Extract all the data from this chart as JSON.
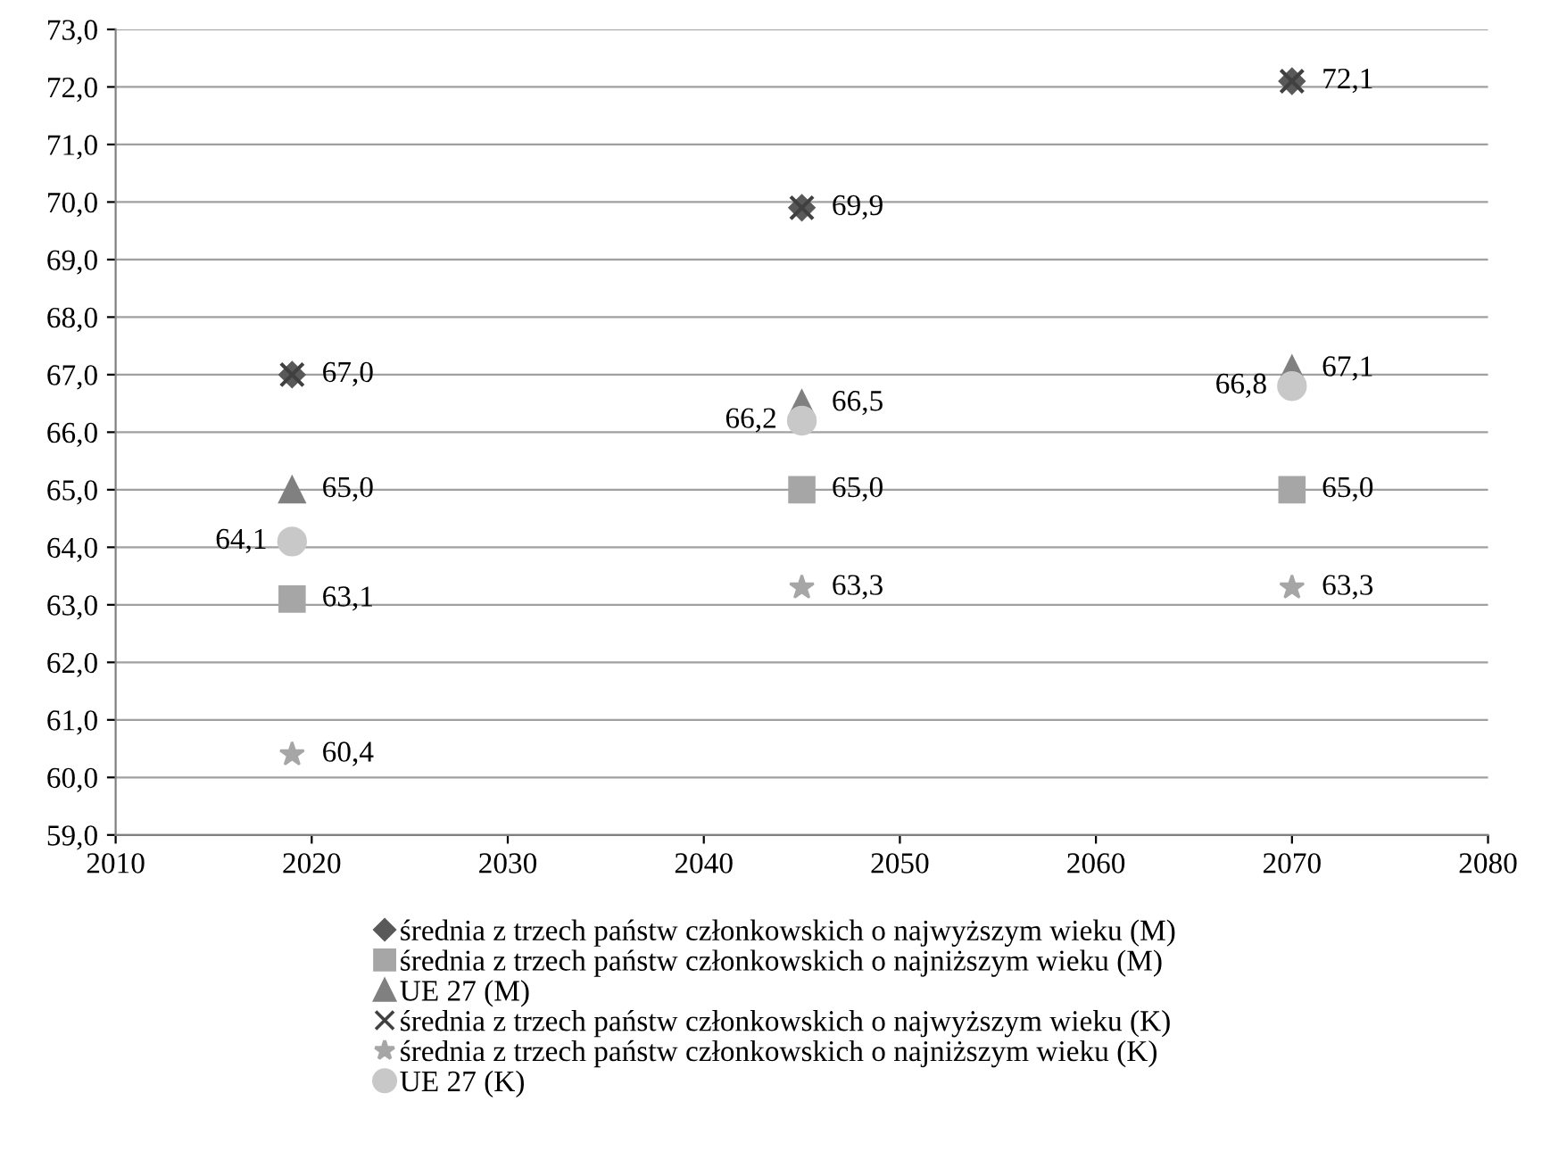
{
  "chart_data": {
    "type": "scatter",
    "x": [
      2019,
      2045,
      2070
    ],
    "series": [
      {
        "name": "średnia z trzech państw członkowskich o najwyższym wieku (M)",
        "color": "#595959",
        "marker": "diamond",
        "values": [
          67.0,
          69.9,
          72.1
        ],
        "value_labels": [
          "67,0",
          "69,9",
          "72,1"
        ]
      },
      {
        "name": "średnia z trzech państw członkowskich o najniższym wieku (M)",
        "color": "#a6a6a6",
        "marker": "square",
        "values": [
          63.1,
          65.0,
          65.0
        ],
        "value_labels": [
          "63,1",
          "65,0",
          "65,0"
        ]
      },
      {
        "name": "UE 27 (M)",
        "color": "#808080",
        "marker": "triangle",
        "values": [
          65.0,
          66.5,
          67.1
        ],
        "value_labels": [
          "65,0",
          "66,5",
          "67,1"
        ]
      },
      {
        "name": "średnia z trzech państw członkowskich o najwyższym wieku (K)",
        "color": "#404040",
        "marker": "cross",
        "values": [
          67.0,
          69.9,
          72.1
        ],
        "value_labels": [
          null,
          null,
          null
        ]
      },
      {
        "name": "średnia z trzech państw członkowskich o najniższym wieku (K)",
        "color": "#a6a6a6",
        "marker": "star",
        "values": [
          60.4,
          63.3,
          63.3
        ],
        "value_labels": [
          "60,4",
          "63,3",
          "63,3"
        ]
      },
      {
        "name": "UE 27 (K)",
        "color": "#c8c8c8",
        "marker": "circle",
        "values": [
          64.1,
          66.2,
          66.8
        ],
        "value_labels": [
          "64,1",
          "66,2",
          "66,8"
        ]
      }
    ],
    "xlim": [
      2010,
      2080
    ],
    "xticks": [
      2010,
      2020,
      2030,
      2040,
      2050,
      2060,
      2070,
      2080
    ],
    "ylim": [
      59,
      73
    ],
    "yticks": [
      {
        "value": 59,
        "label": "59,0"
      },
      {
        "value": 60,
        "label": "60,0"
      },
      {
        "value": 61,
        "label": "61,0"
      },
      {
        "value": 62,
        "label": "62,0"
      },
      {
        "value": 63,
        "label": "63,0"
      },
      {
        "value": 64,
        "label": "64,0"
      },
      {
        "value": 65,
        "label": "65,0"
      },
      {
        "value": 66,
        "label": "66,0"
      },
      {
        "value": 67,
        "label": "67,0"
      },
      {
        "value": 68,
        "label": "68,0"
      },
      {
        "value": 69,
        "label": "69,0"
      },
      {
        "value": 70,
        "label": "70,0"
      },
      {
        "value": 71,
        "label": "71,0"
      },
      {
        "value": 72,
        "label": "72,0"
      },
      {
        "value": 73,
        "label": "73,0"
      }
    ],
    "grid": "y",
    "legend": "bottom"
  }
}
